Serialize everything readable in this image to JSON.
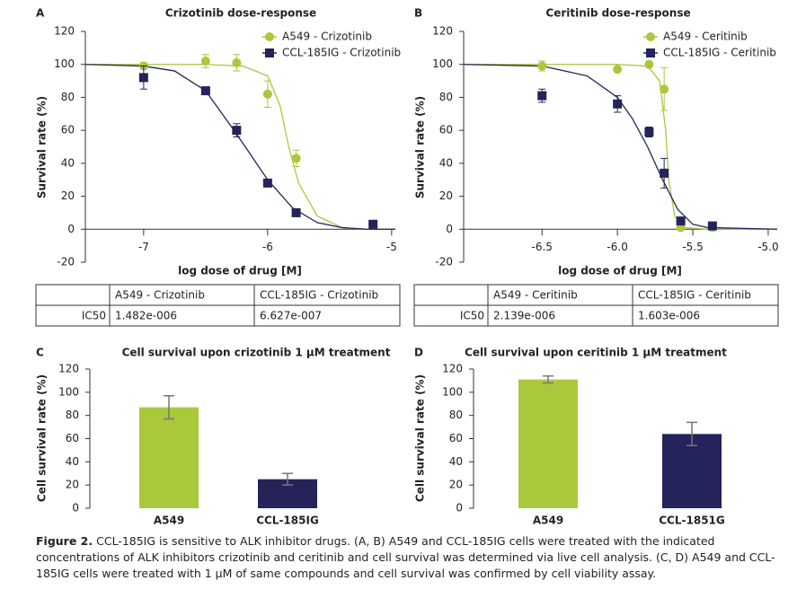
{
  "chart_data": [
    {
      "type": "scatter",
      "panel": "A",
      "title": "Crizotinib dose-response",
      "x_label": "log dose of drug [M]",
      "y_label": "Survival rate (%)",
      "xlim": [
        -7.47,
        -4.97
      ],
      "xticks": [
        -7,
        -6,
        -5
      ],
      "ylim": [
        -20,
        120
      ],
      "yticks": [
        -20,
        0,
        20,
        40,
        60,
        80,
        100,
        120
      ],
      "series": [
        {
          "name": "A549 - Crizotinib",
          "color": "#a9c83c",
          "marker": "circle",
          "x": [
            -7,
            -6.5,
            -6.25,
            -6,
            -5.77,
            -5.15
          ],
          "values": [
            99,
            102,
            101,
            82,
            43,
            3
          ],
          "errors": [
            2,
            4,
            5,
            8,
            5,
            2
          ]
        },
        {
          "name": "CCL-185IG - Crizotinib",
          "color": "#24235a",
          "marker": "square",
          "x": [
            -7,
            -6.5,
            -6.25,
            -6,
            -5.77,
            -5.15
          ],
          "values": [
            92,
            84,
            60,
            28,
            10,
            3
          ],
          "errors": [
            7,
            1,
            4,
            2,
            1,
            1
          ]
        }
      ],
      "fit_curves": [
        {
          "color": "#a9c83c",
          "x": [
            -7.47,
            -6.5,
            -6.2,
            -6,
            -5.9,
            -5.83,
            -5.75,
            -5.6,
            -5.4,
            -5.2,
            -4.97
          ],
          "values": [
            100,
            100,
            99,
            93,
            75,
            50,
            28,
            8,
            1,
            0,
            0
          ]
        },
        {
          "color": "#24235a",
          "x": [
            -7.47,
            -7,
            -6.75,
            -6.5,
            -6.3,
            -6.18,
            -6,
            -5.8,
            -5.6,
            -5.4,
            -5.2,
            -4.97
          ],
          "values": [
            100,
            99,
            96,
            84,
            63,
            50,
            30,
            13,
            4,
            1,
            0,
            0
          ]
        }
      ],
      "table": {
        "columns": [
          "A549 - Crizotinib",
          "CCL-185IG - Crizotinib"
        ],
        "row_label": "IC50",
        "values": [
          "1.482e-006",
          "6.627e-007"
        ]
      }
    },
    {
      "type": "scatter",
      "panel": "B",
      "title": "Ceritinib dose-response",
      "x_label": "log dose of drug [M]",
      "y_label": "Survival rate (%)",
      "xlim": [
        -7.02,
        -4.94
      ],
      "xticks": [
        {
          "value": -6.5,
          "label": "-6.5"
        },
        {
          "value": -6,
          "label": "-6.0"
        },
        {
          "value": -5.5,
          "label": "-5.5"
        },
        {
          "value": -5,
          "label": "-5.0"
        }
      ],
      "ylim": [
        -20,
        120
      ],
      "yticks": [
        -20,
        0,
        20,
        40,
        60,
        80,
        100,
        120
      ],
      "series": [
        {
          "name": "A549 - Ceritinib",
          "color": "#a9c83c",
          "marker": "circle",
          "x": [
            -6.5,
            -6,
            -5.79,
            -5.69,
            -5.58,
            -5.37
          ],
          "values": [
            99,
            97,
            100,
            85,
            1,
            1
          ],
          "errors": [
            3,
            1,
            1,
            13,
            1,
            1
          ]
        },
        {
          "name": "CCL-185IG - Ceritinib",
          "color": "#24235a",
          "marker": "square",
          "x": [
            -6.5,
            -6,
            -5.79,
            -5.69,
            -5.58,
            -5.37
          ],
          "values": [
            81,
            76,
            59,
            34,
            5,
            2
          ],
          "errors": [
            4,
            5,
            3,
            9,
            1,
            1
          ]
        }
      ],
      "fit_curves": [
        {
          "color": "#a9c83c",
          "x": [
            -7.02,
            -6,
            -5.8,
            -5.72,
            -5.68,
            -5.66,
            -5.62,
            -5.55,
            -5.4,
            -4.94
          ],
          "values": [
            100,
            100,
            99,
            90,
            60,
            30,
            8,
            1,
            0,
            0
          ]
        },
        {
          "color": "#24235a",
          "x": [
            -7.02,
            -6.5,
            -6.2,
            -6,
            -5.9,
            -5.8,
            -5.7,
            -5.6,
            -5.5,
            -5.4,
            -4.94
          ],
          "values": [
            100,
            99,
            93,
            80,
            67,
            50,
            30,
            12,
            3,
            1,
            0
          ]
        }
      ],
      "table": {
        "columns": [
          "A549 - Ceritinib",
          "CCL-185IG - Ceritinib"
        ],
        "row_label": "IC50",
        "values": [
          "2.139e-006",
          "1.603e-006"
        ]
      }
    },
    {
      "type": "bar",
      "panel": "C",
      "title": "Cell survival upon crizotinib 1 µM treatment",
      "y_label": "Cell survival rate (%)",
      "categories": [
        "A549",
        "CCL-185IG"
      ],
      "values": [
        87,
        25
      ],
      "errors": [
        10,
        5
      ],
      "colors": [
        "#a9c83c",
        "#24235a"
      ],
      "ylim": [
        0,
        120
      ],
      "yticks": [
        0,
        20,
        40,
        60,
        80,
        100,
        120
      ]
    },
    {
      "type": "bar",
      "panel": "D",
      "title": "Cell survival upon ceritinib 1 µM treatment",
      "y_label": "Cell survival rate (%)",
      "categories": [
        "A549",
        "CCL-1851G"
      ],
      "values": [
        111,
        64
      ],
      "errors": [
        3,
        10
      ],
      "colors": [
        "#a9c83c",
        "#24235a"
      ],
      "ylim": [
        0,
        120
      ],
      "yticks": [
        0,
        20,
        40,
        60,
        80,
        100,
        120
      ]
    }
  ],
  "caption": {
    "label": "Figure 2.",
    "text": "CCL-185IG is sensitive to ALK inhibitor drugs. (A, B) A549 and CCL-185IG cells were treated with the indicated concentrations of ALK inhibitors crizotinib and ceritinib and cell survival was determined via live cell analysis. (C, D) A549 and CCL-185IG cells were treated with 1 µM of same compounds and cell survival was confirmed by cell viability assay."
  }
}
